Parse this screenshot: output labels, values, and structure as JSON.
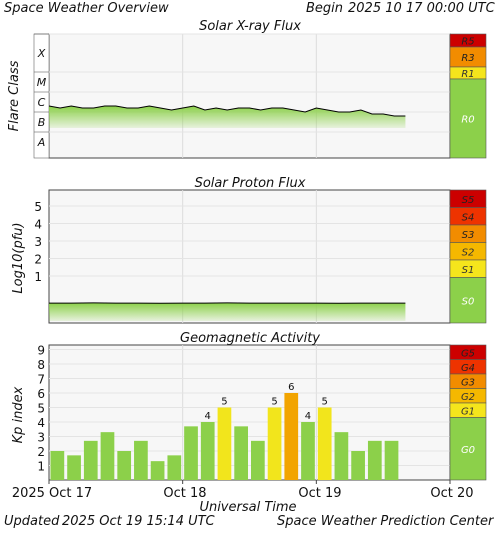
{
  "header": {
    "title": "Space Weather Overview",
    "begin_label": "Begin",
    "begin_value": "2025 10 17 00:00 UTC"
  },
  "footer": {
    "updated_label": "Updated",
    "updated_value": "2025 Oct 19 15:14 UTC",
    "center": "Space Weather Prediction Center"
  },
  "colors": {
    "panel_bg": "#f7f7f7",
    "grid": "#dddddd",
    "green_fill": "#8cd04a",
    "trace": "#000000",
    "bar_green": "#8cd04a",
    "bar_yellow": "#f2e51c",
    "bar_orange": "#f2a400",
    "scale_red": "#cc0000",
    "scale_orange_red": "#ee3300",
    "scale_orange": "#f28c00",
    "scale_yellow_orange": "#f5b800",
    "scale_yellow": "#f5e51c",
    "scale_green": "#8cd04a"
  },
  "chart_data": [
    {
      "type": "line",
      "title": "Solar X-ray Flux",
      "ylabel": "Flare Class",
      "y_categories": [
        "A",
        "B",
        "C",
        "M",
        "X"
      ],
      "series": [
        {
          "x_hours": [
            0,
            2,
            4,
            6,
            8,
            10,
            12,
            14,
            16,
            18,
            20,
            22,
            24,
            26,
            28,
            30,
            32,
            34,
            36,
            38,
            40,
            42,
            44,
            46,
            48,
            50,
            52,
            54,
            56,
            58,
            60,
            62,
            64
          ],
          "class_level": [
            2.3,
            2.2,
            2.3,
            2.2,
            2.2,
            2.3,
            2.3,
            2.2,
            2.2,
            2.3,
            2.2,
            2.1,
            2.2,
            2.3,
            2.1,
            2.2,
            2.1,
            2.2,
            2.2,
            2.1,
            2.2,
            2.2,
            2.1,
            2.0,
            2.2,
            2.1,
            2.0,
            2.0,
            2.1,
            1.9,
            1.9,
            1.8,
            1.8
          ]
        }
      ],
      "scale": {
        "labels": [
          "R5",
          "R3",
          "R1",
          "R0"
        ],
        "colors": [
          "#cc0000",
          "#f28c00",
          "#f5e51c",
          "#8cd04a"
        ]
      }
    },
    {
      "type": "line",
      "title": "Solar Proton Flux",
      "ylabel": "Log10(pfu)",
      "y_ticks": [
        1,
        2,
        3,
        4,
        5
      ],
      "series": [
        {
          "x_hours": [
            0,
            4,
            8,
            12,
            16,
            20,
            24,
            28,
            32,
            36,
            40,
            44,
            48,
            52,
            56,
            60,
            64
          ],
          "log_pfu": [
            -0.55,
            -0.55,
            -0.54,
            -0.55,
            -0.55,
            -0.56,
            -0.55,
            -0.55,
            -0.54,
            -0.55,
            -0.55,
            -0.55,
            -0.55,
            -0.56,
            -0.55,
            -0.55,
            -0.55
          ]
        }
      ],
      "scale": {
        "labels": [
          "S5",
          "S4",
          "S3",
          "S2",
          "S1",
          "S0"
        ],
        "colors": [
          "#cc0000",
          "#ee3300",
          "#f28c00",
          "#f5b800",
          "#f5e51c",
          "#8cd04a"
        ]
      }
    },
    {
      "type": "bar",
      "title": "Geomagnetic Activity",
      "ylabel": "Kp index",
      "y_ticks": [
        1,
        2,
        3,
        4,
        5,
        6,
        7,
        8,
        9
      ],
      "x_start_hours": 0,
      "bar_width_hours": 3,
      "kp_values": [
        2,
        1.7,
        2.7,
        3.3,
        2,
        2.7,
        1.3,
        1.7,
        3.7,
        4,
        5,
        3.7,
        2.7,
        5,
        6,
        4,
        5,
        3.3,
        2,
        2.7,
        2.7
      ],
      "labeled_values": [
        "",
        "",
        "",
        "",
        "",
        "",
        "",
        "",
        "",
        "4",
        "5",
        "",
        "",
        "5",
        "6",
        "4",
        "5",
        "",
        "",
        "",
        ""
      ],
      "scale": {
        "labels": [
          "G5",
          "G4",
          "G3",
          "G2",
          "G1",
          "G0"
        ],
        "colors": [
          "#cc0000",
          "#ee3300",
          "#f28c00",
          "#f5b800",
          "#f5e51c",
          "#8cd04a"
        ]
      }
    }
  ],
  "x_axis": {
    "label": "Universal Time",
    "ticks": [
      "2025 Oct 17",
      "Oct 18",
      "Oct 19",
      "Oct 20"
    ],
    "tick_hours": [
      0,
      24,
      48,
      72
    ],
    "range_hours": [
      0,
      72
    ]
  }
}
